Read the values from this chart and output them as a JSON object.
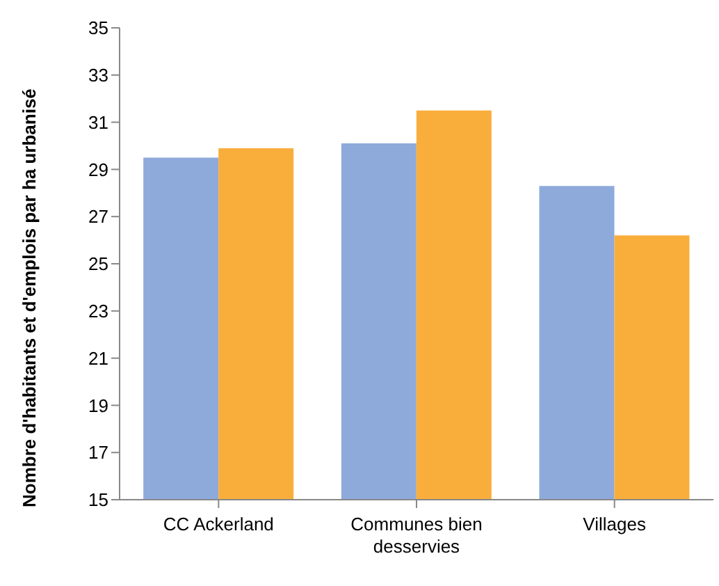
{
  "chart_data": {
    "type": "bar",
    "ylabel": "Nombre d'habitants et d'emplois par ha urbanisé",
    "categories": [
      "CC Ackerland",
      "Communes bien desservies",
      "Villages"
    ],
    "series": [
      {
        "color": "#8eaadb",
        "values": [
          29.5,
          30.1,
          28.3
        ]
      },
      {
        "color": "#f9ae3c",
        "values": [
          29.9,
          31.5,
          26.2
        ]
      }
    ],
    "ylim": [
      15,
      35
    ],
    "yticks": [
      15,
      17,
      19,
      21,
      23,
      25,
      27,
      29,
      31,
      33,
      35
    ],
    "grid": false,
    "legend": false
  }
}
